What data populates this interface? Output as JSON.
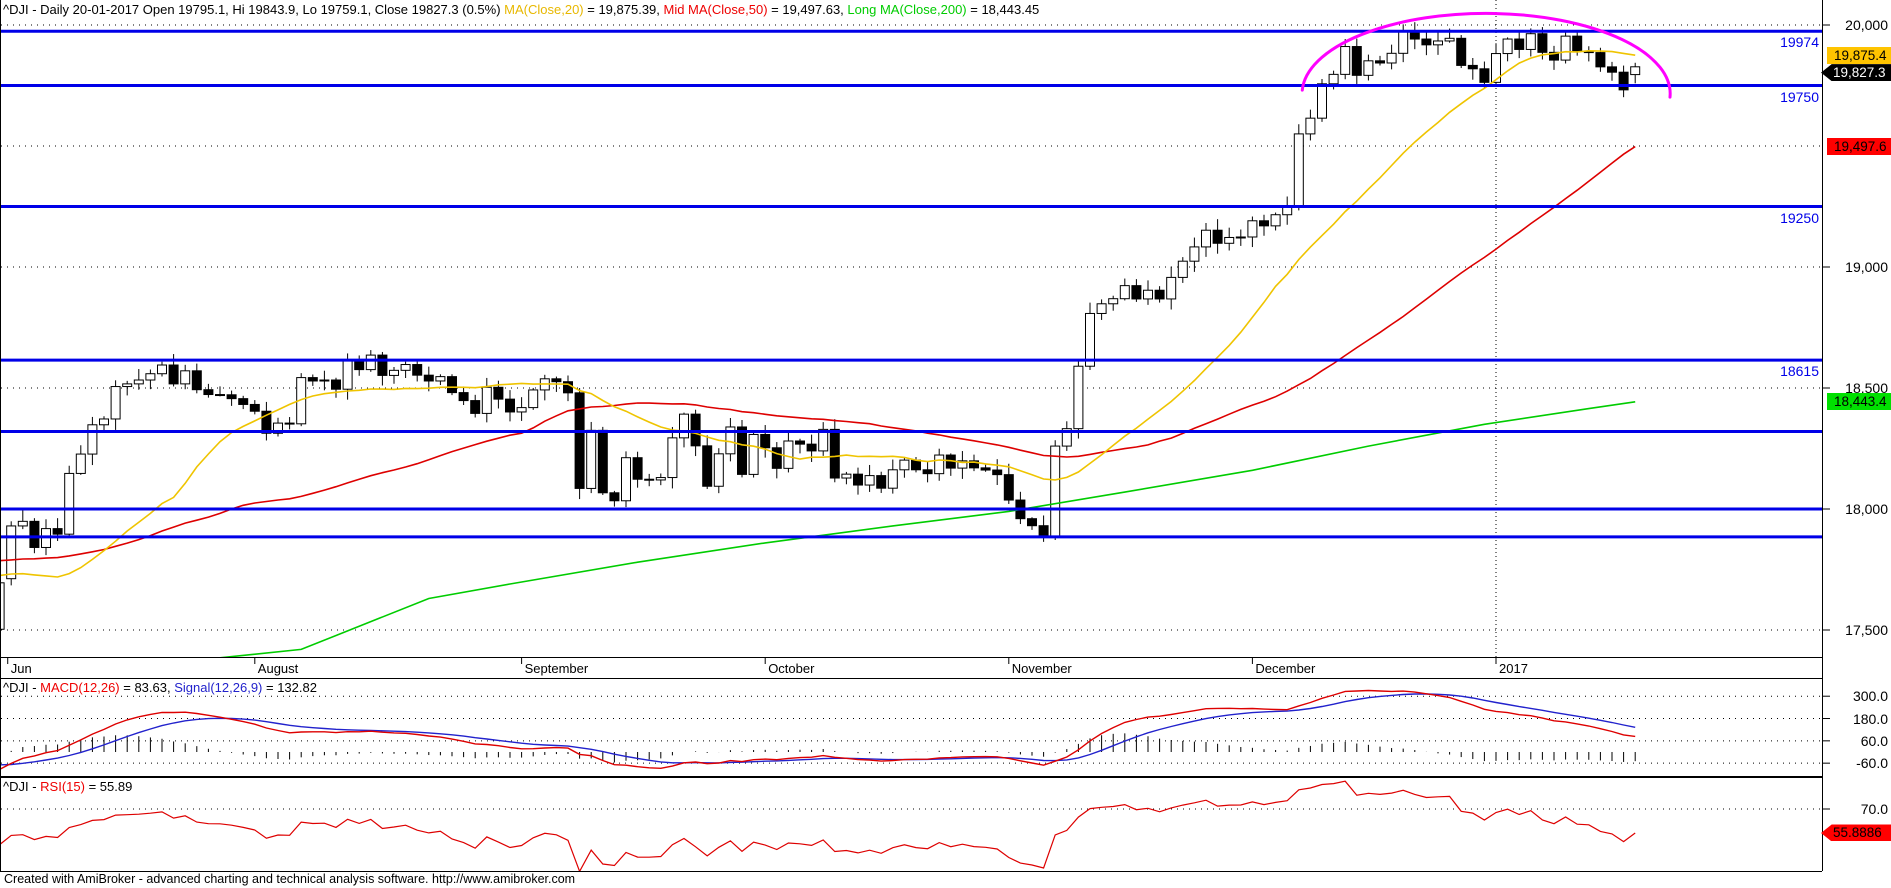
{
  "window": {
    "app": "AmiBroker chart",
    "footer": "Created with AmiBroker - advanced charting and technical analysis software. http://www.amibroker.com"
  },
  "colors": {
    "up_candle": "#FFFFFF",
    "down_candle": "#000000",
    "candle_outline": "#000000",
    "ma20": "#EFC400",
    "ma50": "#DD0000",
    "ma200": "#00CC00",
    "level_line": "#0000E8",
    "level_text": "#0000E0",
    "macd_line": "#DD0000",
    "signal_line": "#2222CC",
    "rsi_line": "#DD0000",
    "annotation": "#FF00FF",
    "grid": "#000000",
    "axis_text": "#000000"
  },
  "panels": {
    "price": {
      "title_segments": [
        {
          "text": "^DJI - Daily 20-01-2017 Open 19795.1, Hi 19843.9, Lo 19759.1, Close 19827.3 (0.5%) ",
          "color": "#000000"
        },
        {
          "text": "MA(Close,20)",
          "color": "#E8B800"
        },
        {
          "text": " = 19,875.39, ",
          "color": "#000000"
        },
        {
          "text": "Mid MA(Close,50)",
          "color": "#EE0000"
        },
        {
          "text": " = 19,497.63, ",
          "color": "#000000"
        },
        {
          "text": "Long MA(Close,200)",
          "color": "#00CC00"
        },
        {
          "text": " = 18,443.45",
          "color": "#000000"
        }
      ],
      "y_axis": {
        "labels": [
          {
            "value": 20000,
            "text": "20,000"
          },
          {
            "value": 19000,
            "text": "19,000"
          },
          {
            "value": 18500,
            "text": "18,500"
          },
          {
            "value": 18000,
            "text": "18,000"
          },
          {
            "value": 17500,
            "text": "17,500"
          }
        ],
        "gridline_values": [
          20000,
          19500,
          19000,
          18500,
          18000,
          17500
        ]
      },
      "x_axis": {
        "months": [
          {
            "label": "Jun",
            "day": -0.3
          },
          {
            "label": "August",
            "day": 21
          },
          {
            "label": "September",
            "day": 44
          },
          {
            "label": "October",
            "day": 65
          },
          {
            "label": "November",
            "day": 86
          },
          {
            "label": "December",
            "day": 107
          },
          {
            "label": "2017",
            "day": 128
          }
        ],
        "year_line_day": 128
      },
      "levels": [
        {
          "value": 19974,
          "label": "19974"
        },
        {
          "value": 19750,
          "label": "19750"
        },
        {
          "value": 19250,
          "label": "19250"
        },
        {
          "value": 18615,
          "label": "18615"
        },
        {
          "value": 18320,
          "label": ""
        },
        {
          "value": 18000,
          "label": ""
        },
        {
          "value": 17885,
          "label": ""
        }
      ],
      "badges": [
        {
          "text": "19,875.4",
          "value": 19875.39,
          "bg": "#FFC400",
          "fg": "#000000",
          "arrow": false
        },
        {
          "text": "19,827.3",
          "value": 19827.3,
          "bg": "#000000",
          "fg": "#FFFFFF",
          "arrow": true
        },
        {
          "text": "19,497.6",
          "value": 19497.63,
          "bg": "#FF0000",
          "fg": "#000000",
          "arrow": false
        },
        {
          "text": "18,443.4",
          "value": 18443.45,
          "bg": "#00E000",
          "fg": "#000000",
          "arrow": false
        }
      ],
      "annotation_arc": {
        "from_day": 111.3,
        "to_day": 143.0,
        "v_start": 19731,
        "v_end": 19702,
        "v_peak": 20052
      }
    },
    "macd": {
      "title_segments": [
        {
          "text": "^DJI - ",
          "color": "#000000"
        },
        {
          "text": "MACD(12,26)",
          "color": "#EE0000"
        },
        {
          "text": " = 83.63, ",
          "color": "#000000"
        },
        {
          "text": "Signal(12,26,9)",
          "color": "#2222CC"
        },
        {
          "text": " = 132.82",
          "color": "#000000"
        }
      ],
      "y_labels": [
        {
          "value": 300,
          "text": "300.0"
        },
        {
          "value": 180,
          "text": "180.0"
        },
        {
          "value": 60,
          "text": "60.0"
        },
        {
          "value": -60,
          "text": "-60.0"
        }
      ]
    },
    "rsi": {
      "title_segments": [
        {
          "text": "^DJI - ",
          "color": "#000000"
        },
        {
          "text": "RSI(15)",
          "color": "#EE0000"
        },
        {
          "text": " = 55.89",
          "color": "#000000"
        }
      ],
      "y_labels": [
        {
          "value": 70,
          "text": "70.0"
        }
      ],
      "badge": {
        "text": "55.8886",
        "value": 55.89,
        "bg": "#FF0000",
        "fg": "#000000",
        "arrow": true
      }
    }
  },
  "chart_data": {
    "type": "candlestick",
    "symbol": "^DJI",
    "interval": "Daily",
    "last_date": "20-01-2017",
    "ohlc_last": {
      "open": 19795.1,
      "high": 19843.9,
      "low": 19759.1,
      "close": 19827.3,
      "change_pct": "0.5%"
    },
    "price_ylim": [
      17390,
      20105
    ],
    "macd_ylim": [
      -129,
      392
    ],
    "rsi_visible_range": [
      33.5,
      88
    ],
    "indicators": {
      "ma_short": 20,
      "ma_mid": 50,
      "ma_long": 200,
      "macd_fast": 12,
      "macd_slow": 26,
      "signal": 9,
      "rsi_period": 15
    },
    "indicator_values": {
      "ma20": 19875.39,
      "ma50": 19497.63,
      "ma200": 18443.45,
      "macd": 83.63,
      "signal": 132.82,
      "rsi": 55.89
    },
    "first_open": 17712,
    "pre_closes": [
      17925,
      17891,
      17841,
      17866,
      17793,
      17737,
      17651,
      17711,
      17750,
      17891,
      17829,
      17711,
      17535,
      17674,
      17928,
      18005,
      18053,
      18096,
      18041,
      17891,
      17873,
      17787,
      17838,
      17807,
      17920,
      17938,
      18005,
      17985,
      17865,
      17732,
      17675,
      17640,
      17733,
      17675,
      17805,
      17830,
      17781,
      18011,
      17400,
      17140,
      17409,
      17456,
      17695
    ],
    "closes": [
      17930,
      17949,
      17841,
      17919,
      17896,
      18147,
      18227,
      18348,
      18372,
      18506,
      18517,
      18533,
      18559,
      18595,
      18517,
      18571,
      18493,
      18473,
      18472,
      18456,
      18432,
      18404,
      18313,
      18355,
      18352,
      18543,
      18529,
      18533,
      18495,
      18613,
      18576,
      18636,
      18552,
      18573,
      18597,
      18553,
      18529,
      18547,
      18481,
      18448,
      18395,
      18503,
      18454,
      18401,
      18419,
      18492,
      18538,
      18526,
      18480,
      18085,
      18325,
      18067,
      18034,
      18212,
      18123,
      18120,
      18130,
      18294,
      18392,
      18261,
      18094,
      18228,
      18339,
      18143,
      18308,
      18253,
      18168,
      18281,
      18268,
      18240,
      18329,
      18128,
      18144,
      18099,
      18138,
      18086,
      18162,
      18202,
      18162,
      18146,
      18223,
      18169,
      18199,
      18170,
      18161,
      18142,
      18037,
      17960,
      17931,
      17888,
      18260,
      18332,
      18590,
      18808,
      18848,
      18869,
      18923,
      18868,
      18904,
      18868,
      18957,
      19024,
      19083,
      19152,
      19098,
      19122,
      19124,
      19191,
      19170,
      19216,
      19252,
      19550,
      19615,
      19757,
      19796,
      19911,
      19792,
      19852,
      19843,
      19883,
      19975,
      19942,
      19918,
      19934,
      19945,
      19833,
      19819,
      19763,
      19882,
      19942,
      19899,
      19964,
      19887,
      19855,
      19954,
      19891,
      19886,
      19827,
      19805,
      19732,
      19827
    ],
    "ma200_points": [
      [
        18,
        17385
      ],
      [
        25,
        17420
      ],
      [
        36,
        17630
      ],
      [
        43,
        17690
      ],
      [
        54,
        17780
      ],
      [
        65,
        17860
      ],
      [
        76,
        17930
      ],
      [
        86,
        17990
      ],
      [
        96,
        18070
      ],
      [
        107,
        18160
      ],
      [
        117,
        18260
      ],
      [
        127,
        18350
      ],
      [
        136,
        18415
      ],
      [
        140,
        18443
      ]
    ]
  }
}
